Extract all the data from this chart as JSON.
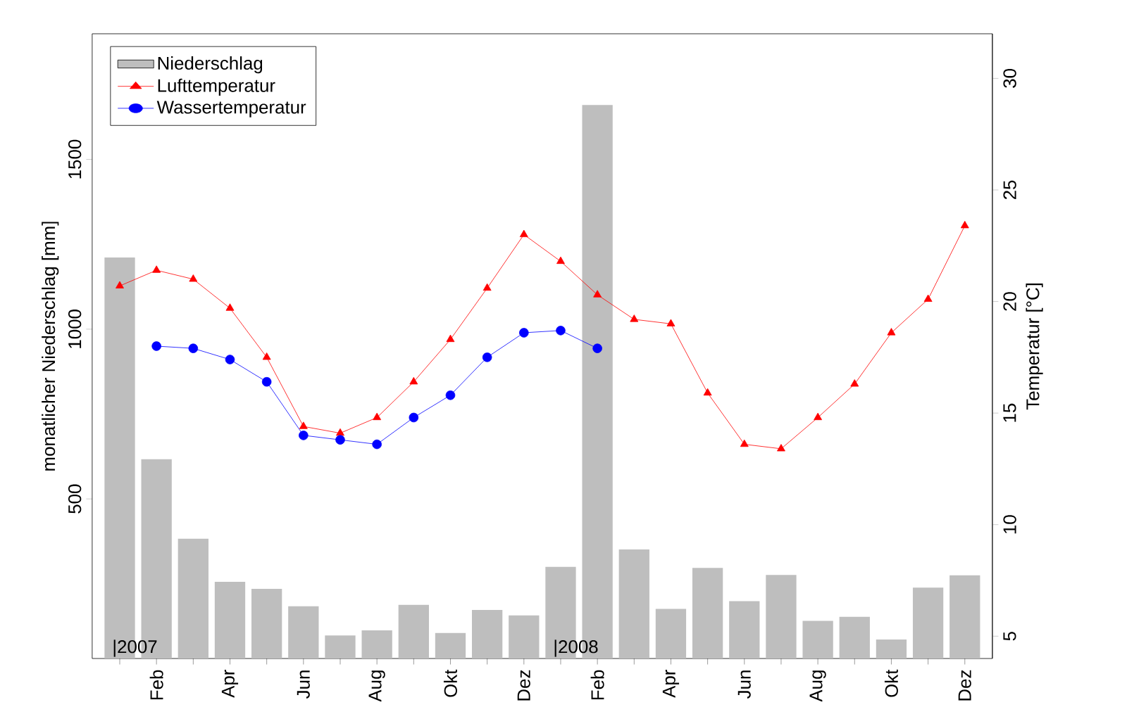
{
  "chart_data": {
    "type": "bar",
    "categories": [
      null,
      "Feb",
      null,
      "Apr",
      null,
      "Jun",
      null,
      "Aug",
      null,
      "Okt",
      null,
      "Dez",
      null,
      "Feb",
      null,
      "Apr",
      null,
      "Jun",
      null,
      "Aug",
      null,
      "Okt",
      null,
      "Dez"
    ],
    "series": [
      {
        "name": "Niederschlag",
        "color": "#bebebe",
        "values": [
          1211,
          617,
          383,
          256,
          235,
          184,
          98,
          113,
          188,
          105,
          173,
          157,
          300,
          1660,
          351,
          176,
          297,
          199,
          276,
          141,
          153,
          86,
          239,
          275
        ]
      },
      {
        "name": "Lufttemperatur",
        "type": "line",
        "axis": "y2",
        "color": "#ff0000",
        "marker": "triangle",
        "values": [
          20.7,
          21.4,
          21.0,
          19.7,
          17.5,
          14.4,
          14.1,
          14.8,
          16.4,
          18.3,
          20.6,
          23.0,
          21.8,
          20.3,
          19.2,
          19.0,
          15.9,
          13.6,
          13.4,
          14.8,
          16.3,
          18.6,
          20.1,
          23.4
        ]
      },
      {
        "name": "Wassertemperatur",
        "type": "line",
        "axis": "y2",
        "color": "#0000ff",
        "marker": "circle",
        "values": [
          null,
          18.0,
          17.9,
          17.4,
          16.4,
          14.0,
          13.8,
          13.6,
          14.8,
          15.8,
          17.5,
          18.6,
          18.7,
          17.9,
          null,
          null,
          null,
          null,
          null,
          null,
          null,
          null,
          null,
          null
        ]
      }
    ],
    "ylabel": "monatlicher Niederschlag [mm]",
    "y2label": "Temperatur [°C]",
    "ylim": [
      30,
      1870
    ],
    "yticks": [
      500,
      1000,
      1500
    ],
    "y2lim": [
      4,
      32
    ],
    "y2ticks": [
      5,
      10,
      15,
      20,
      25,
      30
    ],
    "annotations": [
      "|2007",
      "|2008"
    ],
    "legend": "top left",
    "grid": false,
    "line_style": "solid"
  }
}
